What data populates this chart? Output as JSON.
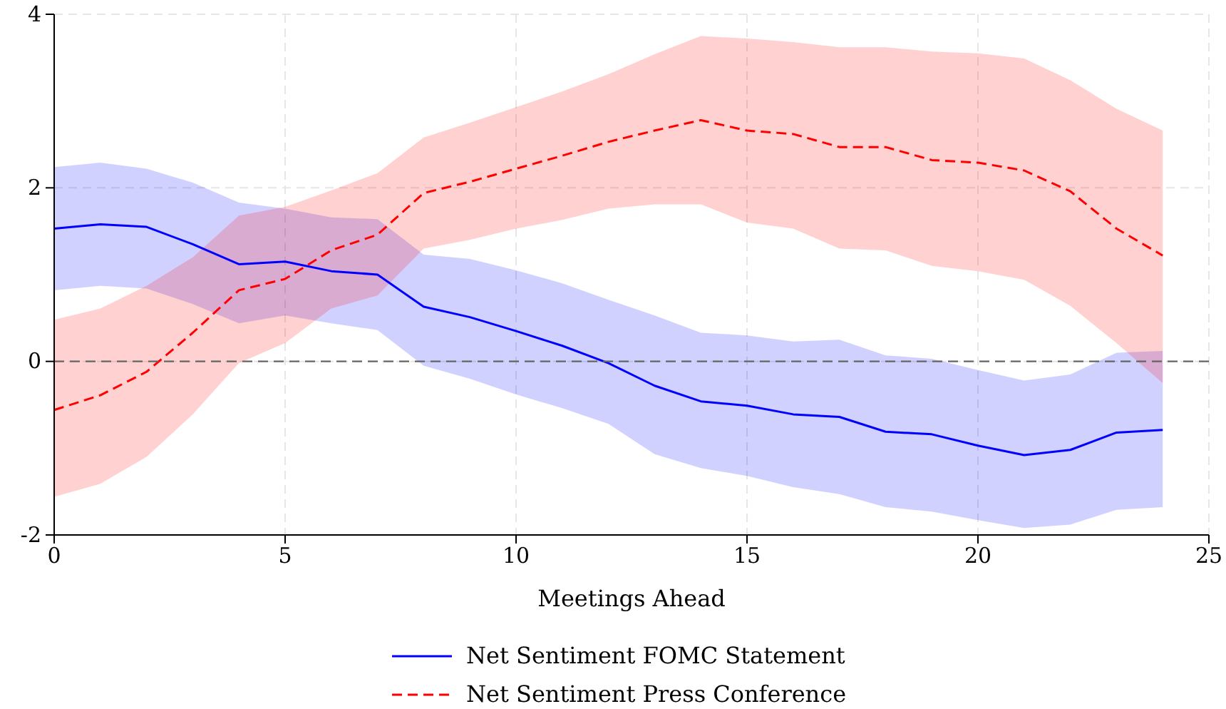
{
  "chart_data": {
    "type": "line",
    "xlabel": "Meetings Ahead",
    "xlim": [
      0,
      25
    ],
    "ylim": [
      -2,
      4
    ],
    "xticks": [
      0,
      5,
      10,
      15,
      20,
      25
    ],
    "yticks": [
      -2,
      0,
      2,
      4
    ],
    "grid": true,
    "legend": "bottom",
    "x": [
      0,
      1,
      2,
      3,
      4,
      5,
      6,
      7,
      8,
      9,
      10,
      11,
      12,
      13,
      14,
      15,
      16,
      17,
      18,
      19,
      20,
      21,
      22,
      23,
      24
    ],
    "ref_lines": [
      {
        "axis": "y",
        "value": 0,
        "color": "#666666",
        "line_style": "dashed"
      }
    ],
    "series": [
      {
        "name": "Net Sentiment FOMC Statement",
        "color": "#0000ff",
        "line_style": "solid",
        "values": [
          1.53,
          1.58,
          1.55,
          1.35,
          1.12,
          1.15,
          1.04,
          1.0,
          0.63,
          0.51,
          0.35,
          0.18,
          -0.02,
          -0.28,
          -0.46,
          -0.51,
          -0.61,
          -0.64,
          -0.81,
          -0.84,
          -0.97,
          -1.08,
          -1.02,
          -0.82,
          -0.79
        ],
        "upper": [
          2.24,
          2.29,
          2.22,
          2.06,
          1.83,
          1.76,
          1.66,
          1.64,
          1.23,
          1.18,
          1.05,
          0.9,
          0.71,
          0.53,
          0.33,
          0.3,
          0.23,
          0.25,
          0.07,
          0.03,
          -0.1,
          -0.22,
          -0.15,
          0.1,
          0.12
        ],
        "lower": [
          0.82,
          0.87,
          0.84,
          0.66,
          0.44,
          0.53,
          0.44,
          0.36,
          -0.05,
          -0.2,
          -0.38,
          -0.54,
          -0.72,
          -1.07,
          -1.23,
          -1.32,
          -1.45,
          -1.53,
          -1.68,
          -1.73,
          -1.83,
          -1.92,
          -1.88,
          -1.71,
          -1.68
        ]
      },
      {
        "name": "Net Sentiment Press Conference",
        "color": "#ff0000",
        "line_style": "dashed",
        "values": [
          -0.56,
          -0.39,
          -0.12,
          0.33,
          0.82,
          0.95,
          1.28,
          1.46,
          1.94,
          2.07,
          2.22,
          2.37,
          2.53,
          2.66,
          2.78,
          2.66,
          2.62,
          2.47,
          2.47,
          2.32,
          2.29,
          2.2,
          1.96,
          1.53,
          1.22
        ],
        "upper": [
          0.48,
          0.61,
          0.87,
          1.2,
          1.68,
          1.78,
          1.97,
          2.17,
          2.58,
          2.75,
          2.93,
          3.11,
          3.31,
          3.54,
          3.75,
          3.72,
          3.68,
          3.62,
          3.62,
          3.57,
          3.55,
          3.49,
          3.24,
          2.91,
          2.66
        ],
        "lower": [
          -1.56,
          -1.41,
          -1.1,
          -0.61,
          -0.02,
          0.21,
          0.61,
          0.76,
          1.3,
          1.4,
          1.53,
          1.63,
          1.76,
          1.81,
          1.81,
          1.6,
          1.53,
          1.3,
          1.28,
          1.1,
          1.04,
          0.94,
          0.64,
          0.21,
          -0.25
        ]
      }
    ]
  }
}
